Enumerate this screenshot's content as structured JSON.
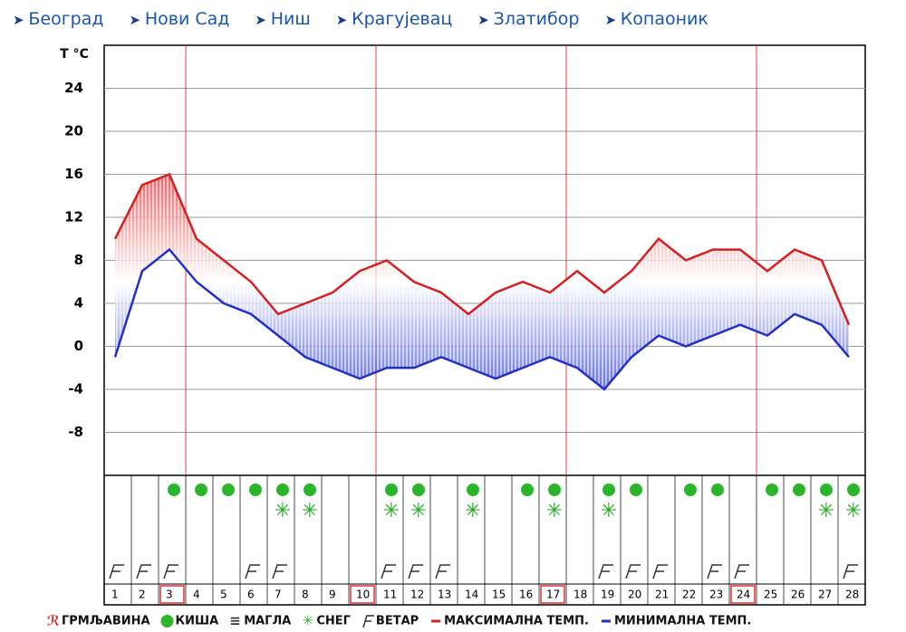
{
  "nav": [
    "Београд",
    "Нови Сад",
    "Ниш",
    "Крагујевац",
    "Златибор",
    "Копаоник"
  ],
  "chart_data": {
    "type": "line",
    "y_label": "T °C",
    "categories": [
      "1",
      "2",
      "3",
      "4",
      "5",
      "6",
      "7",
      "8",
      "9",
      "10",
      "11",
      "12",
      "13",
      "14",
      "15",
      "16",
      "17",
      "18",
      "19",
      "20",
      "21",
      "22",
      "23",
      "24",
      "25",
      "26",
      "27",
      "28"
    ],
    "series": [
      {
        "name": "МАКСИМАЛНА ТЕМП.",
        "color": "#d42020",
        "values": [
          10,
          15,
          16,
          10,
          8,
          6,
          3,
          4,
          5,
          7,
          8,
          6,
          5,
          3,
          5,
          6,
          5,
          7,
          5,
          7,
          10,
          8,
          9,
          9,
          7,
          9,
          8,
          2
        ]
      },
      {
        "name": "МИНИМАЛНА ТЕМП.",
        "color": "#2030c8",
        "values": [
          -1,
          7,
          9,
          6,
          4,
          3,
          1,
          -1,
          -2,
          -3,
          -2,
          -2,
          -1,
          -2,
          -3,
          -2,
          -1,
          -2,
          -4,
          -1,
          1,
          0,
          1,
          2,
          1,
          3,
          2,
          -1
        ]
      }
    ],
    "ylim": [
      -12,
      28
    ],
    "yticks": [
      -8,
      -4,
      0,
      4,
      8,
      12,
      16,
      20,
      24
    ],
    "grid": true,
    "highlighted": [
      3,
      10,
      17,
      24
    ],
    "weather": {
      "rain": [
        false,
        false,
        true,
        true,
        true,
        true,
        true,
        true,
        false,
        false,
        true,
        true,
        false,
        true,
        false,
        true,
        true,
        false,
        true,
        true,
        false,
        true,
        true,
        false,
        true,
        true,
        true,
        true
      ],
      "snow": [
        false,
        false,
        false,
        false,
        false,
        false,
        true,
        true,
        false,
        false,
        true,
        true,
        false,
        true,
        false,
        false,
        true,
        false,
        true,
        false,
        false,
        false,
        false,
        false,
        false,
        false,
        true,
        true
      ],
      "wind": [
        true,
        true,
        true,
        false,
        false,
        true,
        true,
        false,
        false,
        false,
        true,
        true,
        true,
        false,
        false,
        false,
        false,
        false,
        true,
        true,
        true,
        false,
        true,
        true,
        false,
        false,
        false,
        true
      ]
    },
    "legend": {
      "thunder": "ГРМЉАВИНА",
      "rain": "КИША",
      "fog": "МАГЛА",
      "snow": "СНЕГ",
      "wind": "ВЕТАР"
    }
  }
}
